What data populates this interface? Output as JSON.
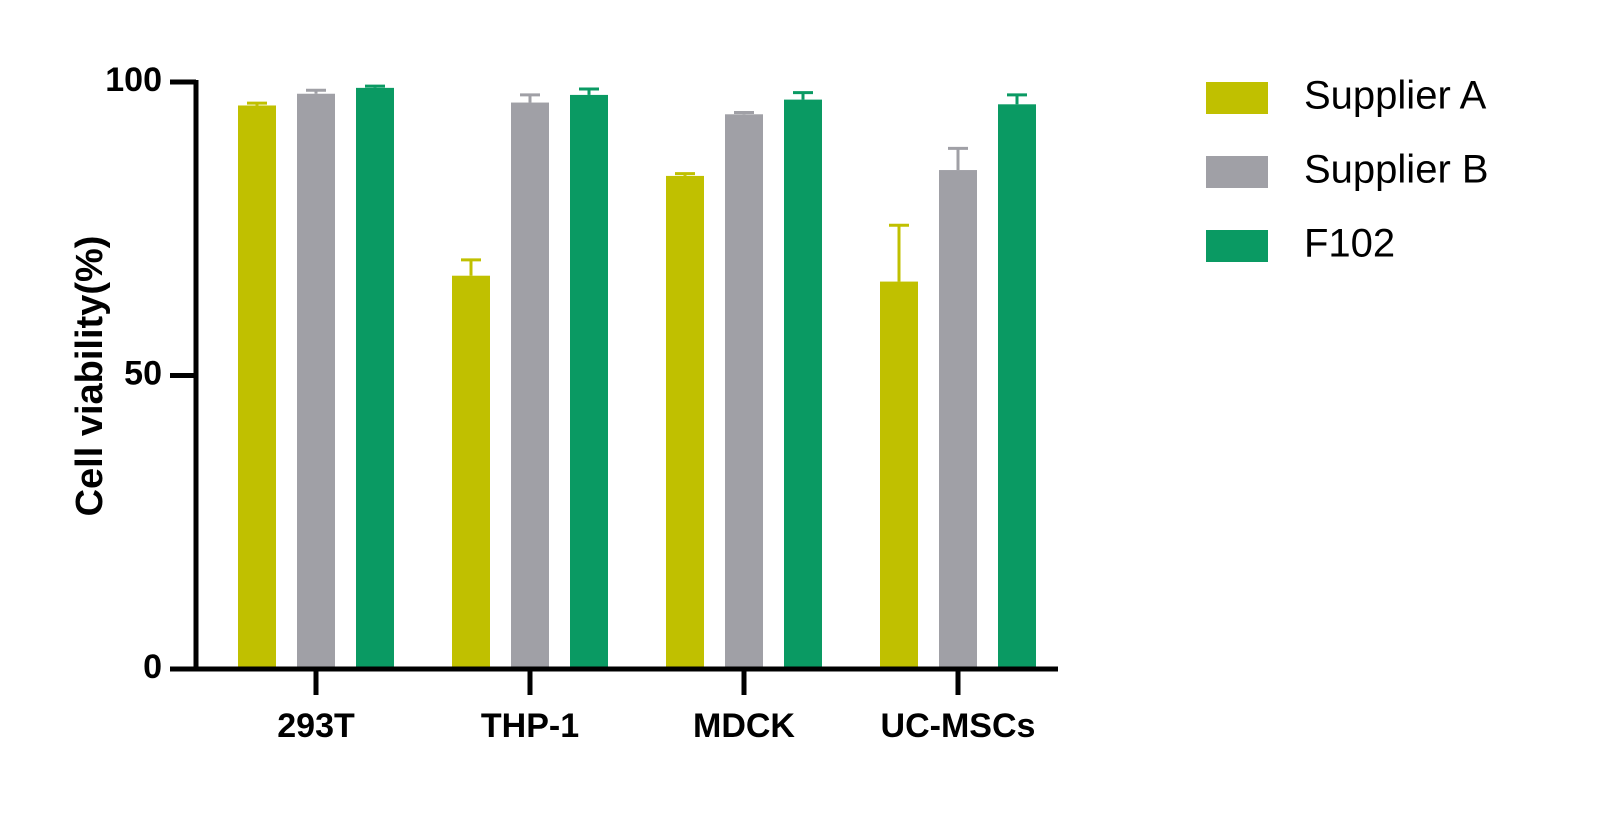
{
  "chart_data": {
    "type": "bar",
    "title": "",
    "xlabel": "",
    "ylabel": "Cell viability(%)",
    "ylim": [
      0,
      100
    ],
    "yticks": [
      0,
      50,
      100
    ],
    "categories": [
      "293T",
      "THP-1",
      "MDCK",
      "UC-MSCs"
    ],
    "series": [
      {
        "name": "Supplier A",
        "color": "#c0c000",
        "values": [
          96,
          67,
          84,
          66
        ],
        "errors": [
          0.4,
          2.7,
          0.4,
          9.6
        ]
      },
      {
        "name": "Supplier B",
        "color": "#a0a0a6",
        "values": [
          98,
          96.5,
          94.5,
          85
        ],
        "errors": [
          0.6,
          1.3,
          0.3,
          3.7
        ]
      },
      {
        "name": "F102",
        "color": "#0a9a63",
        "values": [
          99,
          97.8,
          97,
          96.2
        ],
        "errors": [
          0.3,
          1.0,
          1.2,
          1.6
        ]
      }
    ],
    "legend_position": "right",
    "grid": false
  }
}
